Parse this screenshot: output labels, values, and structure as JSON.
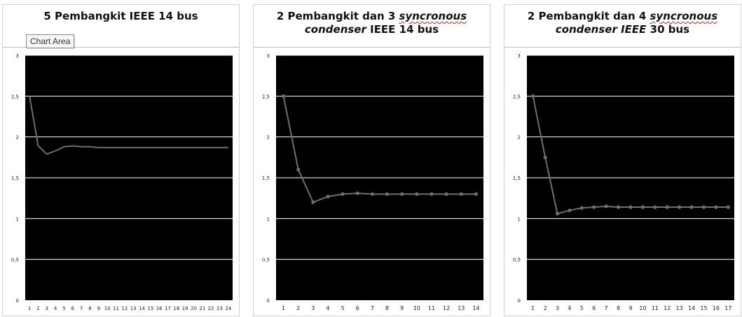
{
  "tooltip": "Chart Area",
  "colors": {
    "plot_bg": "#000000",
    "grid": "#ffffff",
    "line": "#6f6f6f",
    "tick_text": "#222222"
  },
  "chart_data": [
    {
      "type": "line",
      "title": "5 Pembangkit IEEE 14 bus",
      "markers": false,
      "x": [
        1,
        2,
        3,
        4,
        5,
        6,
        7,
        8,
        9,
        10,
        11,
        12,
        13,
        14,
        15,
        16,
        17,
        18,
        19,
        20,
        21,
        22,
        23,
        24
      ],
      "series": [
        {
          "values": [
            2.5,
            1.89,
            1.79,
            1.83,
            1.88,
            1.89,
            1.88,
            1.88,
            1.87,
            1.87,
            1.87,
            1.87,
            1.87,
            1.87,
            1.87,
            1.87,
            1.87,
            1.87,
            1.87,
            1.87,
            1.87,
            1.87,
            1.87,
            1.87
          ]
        }
      ],
      "ylim": [
        0,
        3
      ],
      "yticks": [
        "0",
        "0,5",
        "1",
        "1,5",
        "2",
        "2,5",
        "3"
      ],
      "grid": true
    },
    {
      "type": "line",
      "title": "2 Pembangkit dan 3 syncronous condenser IEEE 14 bus",
      "title_line1": "2 Pembangkit dan 3",
      "title_line1_italic": "syncronous",
      "title_line2_italic": "condenser",
      "title_line2": "IEEE 14 bus",
      "markers": true,
      "x": [
        1,
        2,
        3,
        4,
        5,
        6,
        7,
        8,
        9,
        10,
        11,
        12,
        13,
        14
      ],
      "series": [
        {
          "values": [
            2.5,
            1.6,
            1.2,
            1.27,
            1.3,
            1.31,
            1.3,
            1.3,
            1.3,
            1.3,
            1.3,
            1.3,
            1.3,
            1.3
          ]
        }
      ],
      "ylim": [
        0,
        3
      ],
      "yticks": [
        "0",
        "0,5",
        "1",
        "1,5",
        "2",
        "2,5",
        "3"
      ],
      "grid": true
    },
    {
      "type": "line",
      "title": "2 Pembangkit dan 4 syncronous condenser IEEE 30 bus",
      "title_line1": "2 Pembangkit dan 4",
      "title_line1_italic": "syncronous",
      "title_line2_italic": "condenser IEEE",
      "title_line2": "30 bus",
      "markers": true,
      "x": [
        1,
        2,
        3,
        4,
        5,
        6,
        7,
        8,
        9,
        10,
        11,
        12,
        13,
        14,
        15,
        16,
        17
      ],
      "series": [
        {
          "values": [
            2.5,
            1.75,
            1.06,
            1.1,
            1.13,
            1.14,
            1.15,
            1.14,
            1.14,
            1.14,
            1.14,
            1.14,
            1.14,
            1.14,
            1.14,
            1.14,
            1.14
          ]
        }
      ],
      "ylim": [
        0,
        3
      ],
      "yticks": [
        "0",
        "0,5",
        "1",
        "1,5",
        "2",
        "2,5",
        "3"
      ],
      "grid": true
    }
  ]
}
